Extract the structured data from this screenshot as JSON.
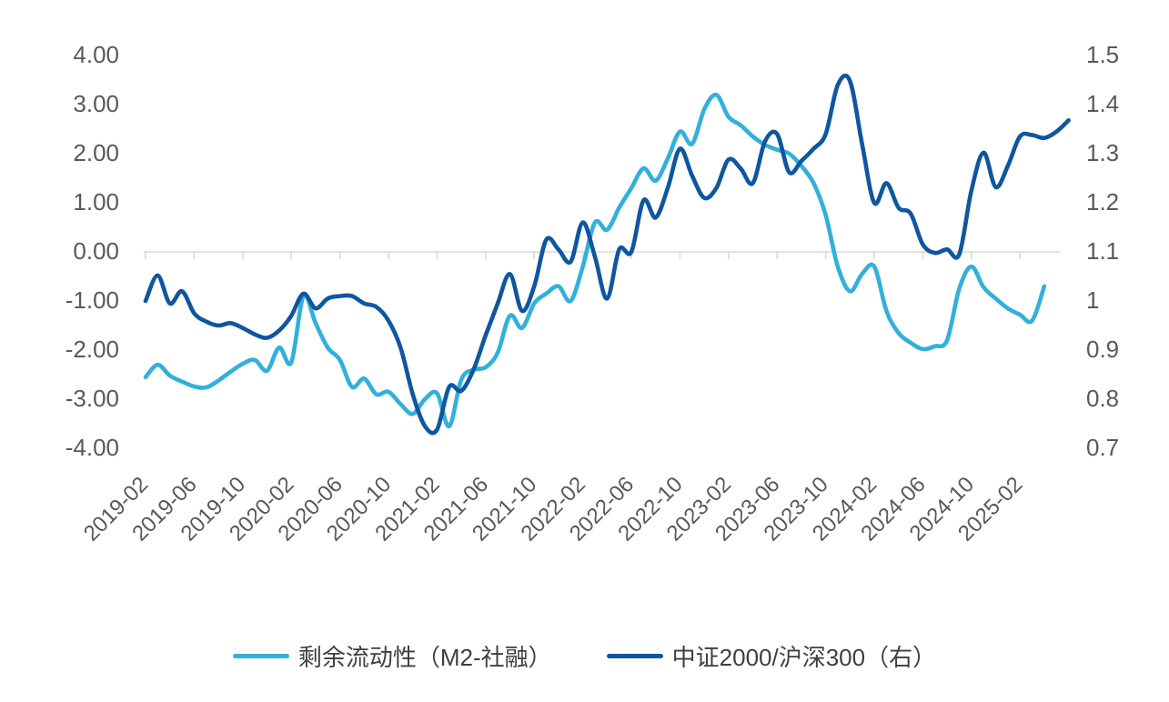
{
  "chart_data": {
    "type": "line",
    "title": "",
    "grid": "zero-line-only",
    "legend_position": "bottom",
    "colors": {
      "axis_text": "#595959",
      "grid_line": "#d9d9d9",
      "series_light": "#32b0dc",
      "series_dark": "#0e56a0"
    },
    "left_axis": {
      "ticks": [
        "4.00",
        "3.00",
        "2.00",
        "1.00",
        "0.00",
        "-1.00",
        "-2.00",
        "-3.00",
        "-4.00"
      ],
      "min": -4,
      "max": 4
    },
    "right_axis": {
      "ticks": [
        "1.5",
        "1.4",
        "1.3",
        "1.2",
        "1.1",
        "1",
        "0.9",
        "0.8",
        "0.7"
      ],
      "min": 0.7,
      "max": 1.5
    },
    "x_tick_labels": [
      "2019-02",
      "2019-06",
      "2019-10",
      "2020-02",
      "2020-06",
      "2020-10",
      "2021-02",
      "2021-06",
      "2021-10",
      "2022-02",
      "2022-06",
      "2022-10",
      "2023-02",
      "2023-06",
      "2023-10",
      "2024-02",
      "2024-06",
      "2024-10",
      "2025-02"
    ],
    "x_months_per_tick": 4,
    "series": [
      {
        "name": "剩余流动性（M2-社融）",
        "axis": "left",
        "color": "#32b0dc",
        "start": "2019-02",
        "freq": "monthly",
        "values": [
          -2.55,
          -2.3,
          -2.52,
          -2.64,
          -2.74,
          -2.76,
          -2.62,
          -2.44,
          -2.28,
          -2.2,
          -2.42,
          -1.95,
          -2.25,
          -0.9,
          -1.45,
          -1.95,
          -2.2,
          -2.75,
          -2.58,
          -2.9,
          -2.85,
          -3.1,
          -3.3,
          -3.0,
          -2.88,
          -3.55,
          -2.6,
          -2.4,
          -2.35,
          -2.05,
          -1.3,
          -1.55,
          -1.05,
          -0.85,
          -0.7,
          -1.0,
          -0.3,
          0.6,
          0.45,
          0.9,
          1.3,
          1.7,
          1.45,
          1.9,
          2.45,
          2.2,
          2.9,
          3.2,
          2.75,
          2.58,
          2.35,
          2.18,
          2.08,
          2.0,
          1.75,
          1.4,
          0.75,
          -0.3,
          -0.8,
          -0.45,
          -0.3,
          -1.2,
          -1.65,
          -1.85,
          -1.98,
          -1.92,
          -1.8,
          -0.75,
          -0.3,
          -0.72,
          -0.95,
          -1.15,
          -1.28,
          -1.4,
          -0.7
        ]
      },
      {
        "name": "中证2000/沪深300（右）",
        "axis": "right",
        "color": "#0e56a0",
        "start": "2019-02",
        "freq": "monthly",
        "values": [
          1.0,
          1.052,
          0.995,
          1.02,
          0.975,
          0.958,
          0.95,
          0.955,
          0.945,
          0.932,
          0.925,
          0.94,
          0.97,
          1.015,
          0.985,
          1.005,
          1.01,
          1.01,
          0.995,
          0.988,
          0.96,
          0.905,
          0.81,
          0.745,
          0.738,
          0.825,
          0.817,
          0.86,
          0.93,
          0.995,
          1.055,
          0.98,
          1.03,
          1.125,
          1.105,
          1.08,
          1.16,
          1.09,
          1.005,
          1.105,
          1.1,
          1.205,
          1.17,
          1.23,
          1.31,
          1.255,
          1.21,
          1.23,
          1.288,
          1.27,
          1.24,
          1.325,
          1.34,
          1.262,
          1.285,
          1.31,
          1.34,
          1.44,
          1.448,
          1.32,
          1.2,
          1.24,
          1.19,
          1.178,
          1.115,
          1.098,
          1.105,
          1.095,
          1.225,
          1.302,
          1.232,
          1.275,
          1.335,
          1.338,
          1.332,
          1.345,
          1.368
        ]
      }
    ]
  },
  "legend": {
    "items": [
      {
        "label": "剩余流动性（M2-社融）",
        "color": "#32b0dc"
      },
      {
        "label": "中证2000/沪深300（右）",
        "color": "#0e56a0"
      }
    ]
  }
}
